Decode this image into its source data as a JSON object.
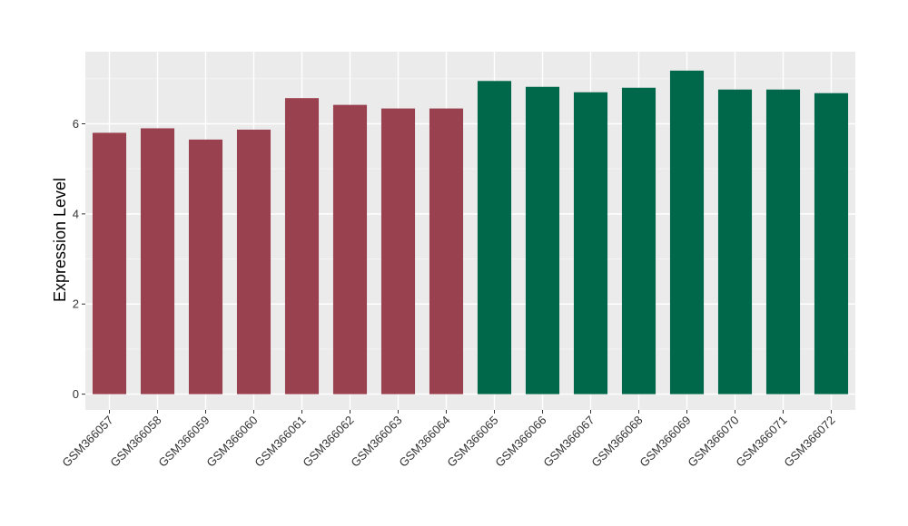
{
  "chart_data": {
    "type": "bar",
    "title": "",
    "xlabel": "",
    "ylabel": "Expression Level",
    "ylim": [
      -0.35,
      7.6
    ],
    "yticks": [
      0,
      2,
      4,
      6
    ],
    "grid": true,
    "legend": "none",
    "panel_background": "#EBEBEB",
    "categories": [
      "GSM366057",
      "GSM366058",
      "GSM366059",
      "GSM366060",
      "GSM366061",
      "GSM366062",
      "GSM366063",
      "GSM366064",
      "GSM366065",
      "GSM366066",
      "GSM366067",
      "GSM366068",
      "GSM366069",
      "GSM366070",
      "GSM366071",
      "GSM366072"
    ],
    "values": [
      5.8,
      5.9,
      5.65,
      5.87,
      6.57,
      6.42,
      6.34,
      6.34,
      6.95,
      6.82,
      6.7,
      6.8,
      7.18,
      6.76,
      6.76,
      6.68
    ],
    "bar_colors": [
      "#9A4150",
      "#9A4150",
      "#9A4150",
      "#9A4150",
      "#9A4150",
      "#9A4150",
      "#9A4150",
      "#9A4150",
      "#00684A",
      "#00684A",
      "#00684A",
      "#00684A",
      "#00684A",
      "#00684A",
      "#00684A",
      "#00684A"
    ]
  }
}
